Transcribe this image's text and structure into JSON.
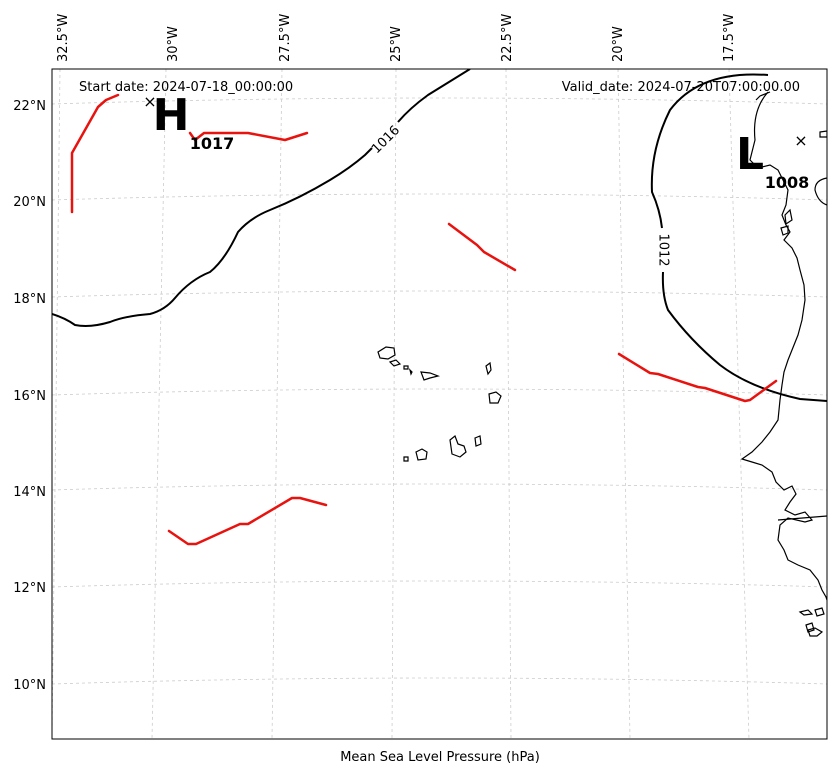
{
  "map": {
    "start_date": "Start date: 2024-07-18_00:00:00",
    "valid_date": "Valid_date: 2024-07-20T07:00:00.00",
    "caption": "Mean Sea Level Pressure (hPa)",
    "lon_ticks": [
      "32.5°W",
      "30°W",
      "27.5°W",
      "25°W",
      "22.5°W",
      "20°W",
      "17.5°W"
    ],
    "lat_ticks": [
      "22°N",
      "20°N",
      "18°N",
      "16°N",
      "14°N",
      "12°N",
      "10°N"
    ],
    "isobar_labels": [
      "1016",
      "1012"
    ],
    "high": {
      "symbol": "H",
      "value": "1017"
    },
    "low": {
      "symbol": "L",
      "value": "1008"
    },
    "center_marker": "×",
    "colors": {
      "isobar": "#000000",
      "front": "#e8130f",
      "grid": "#cccccc",
      "coastline": "#000000"
    }
  }
}
